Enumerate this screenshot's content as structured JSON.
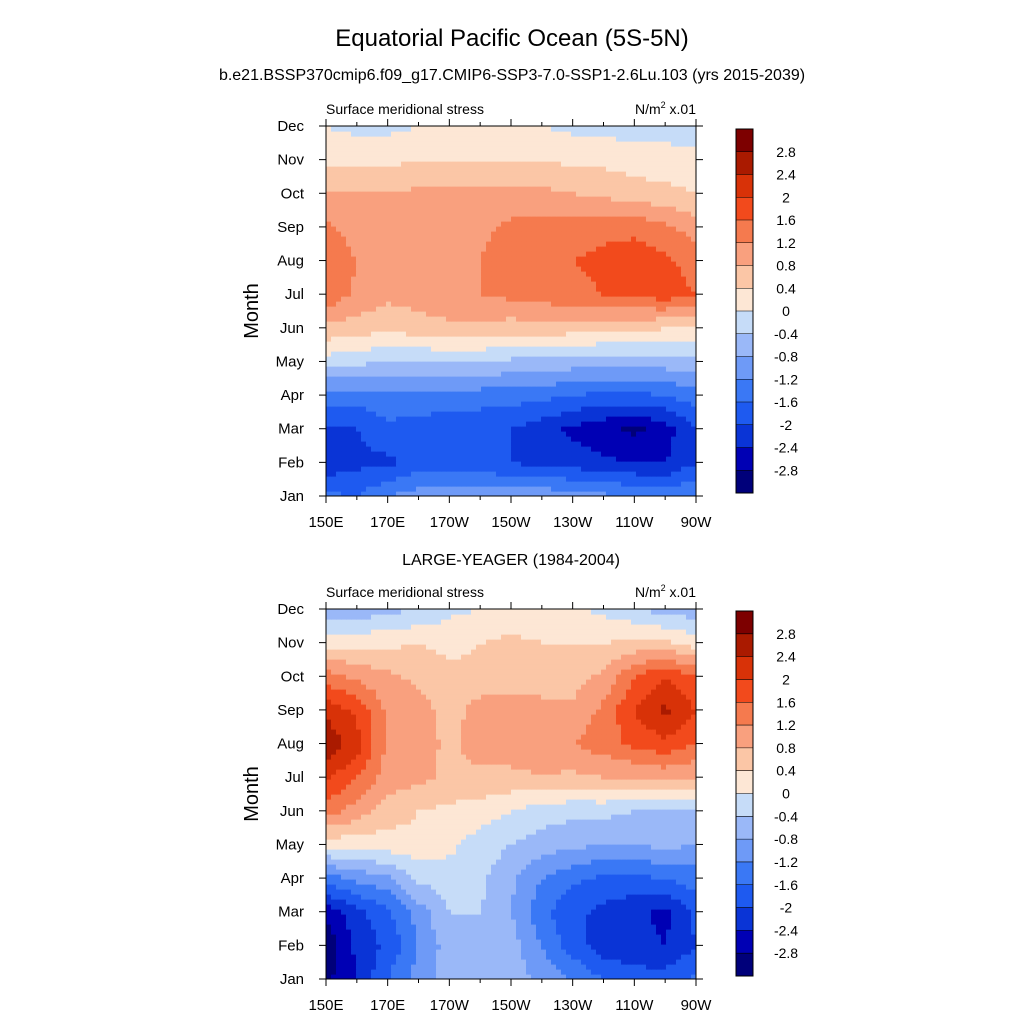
{
  "figure": {
    "title": "Equatorial Pacific Ocean (5S-5N)",
    "subtitle": "b.e21.BSSP370cmip6.f09_g17.CMIP6-SSP3-7.0-SSP1-2.6Lu.103 (yrs 2015-2039)"
  },
  "chart_data": [
    {
      "type": "heatmap",
      "title": "",
      "left_label": "Surface meridional stress",
      "units_base": "N/m",
      "units_exp": "2",
      "units_scale": " x.01",
      "ylabel": "Month",
      "xlabel": "",
      "x_ticks": [
        "150E",
        "170E",
        "170W",
        "150W",
        "130W",
        "110W",
        "90W"
      ],
      "x_range_deg_east": [
        150,
        270
      ],
      "y_ticks": [
        "Jan",
        "Feb",
        "Mar",
        "Apr",
        "May",
        "Jun",
        "Jul",
        "Aug",
        "Sep",
        "Oct",
        "Nov",
        "Dec"
      ],
      "colorbar_labels": [
        "2.8",
        "2.4",
        "2",
        "1.6",
        "1.2",
        "0.8",
        "0.4",
        "0",
        "-0.4",
        "-0.8",
        "-1.2",
        "-1.6",
        "-2",
        "-2.4",
        "-2.8"
      ],
      "longitudes_deg_east": [
        150,
        160,
        170,
        180,
        190,
        200,
        210,
        220,
        230,
        240,
        250,
        260,
        270
      ],
      "values": [
        [
          -1.5,
          -1.6,
          -1.2,
          -1.0,
          -0.9,
          -0.9,
          -0.9,
          -0.9,
          -1.0,
          -1.1,
          -1.2,
          -1.3,
          -1.2
        ],
        [
          -2.3,
          -2.1,
          -2.1,
          -1.8,
          -1.8,
          -1.9,
          -2.0,
          -2.1,
          -2.2,
          -2.3,
          -2.4,
          -2.4,
          -2.0
        ],
        [
          -2.1,
          -2.0,
          -1.7,
          -1.8,
          -1.9,
          -1.9,
          -2.0,
          -2.2,
          -2.5,
          -2.7,
          -2.9,
          -2.6,
          -2.0
        ],
        [
          -1.4,
          -1.4,
          -1.3,
          -1.3,
          -1.3,
          -1.4,
          -1.4,
          -1.5,
          -1.6,
          -1.7,
          -1.7,
          -1.6,
          -1.4
        ],
        [
          -0.2,
          -0.3,
          -0.4,
          -0.4,
          -0.4,
          -0.4,
          -0.5,
          -0.5,
          -0.6,
          -0.6,
          -0.6,
          -0.6,
          -0.5
        ],
        [
          0.7,
          0.6,
          0.5,
          0.6,
          0.7,
          0.7,
          0.6,
          0.6,
          0.6,
          0.5,
          0.5,
          0.4,
          0.3
        ],
        [
          1.5,
          1.1,
          0.9,
          1.0,
          1.1,
          1.2,
          1.3,
          1.4,
          1.5,
          1.6,
          1.7,
          1.8,
          1.6
        ],
        [
          1.6,
          1.2,
          1.0,
          1.1,
          1.1,
          1.2,
          1.4,
          1.5,
          1.6,
          1.7,
          1.8,
          1.7,
          1.4
        ],
        [
          1.3,
          1.0,
          1.0,
          1.1,
          1.1,
          1.1,
          1.3,
          1.4,
          1.4,
          1.5,
          1.5,
          1.3,
          1.0
        ],
        [
          0.8,
          0.8,
          0.8,
          0.9,
          0.9,
          0.9,
          0.9,
          0.9,
          0.8,
          0.7,
          0.6,
          0.5,
          0.4
        ],
        [
          0.3,
          0.3,
          0.3,
          0.4,
          0.4,
          0.4,
          0.4,
          0.4,
          0.3,
          0.3,
          0.2,
          0.2,
          0.2
        ],
        [
          0.0,
          -0.1,
          -0.1,
          0.0,
          0.0,
          0.1,
          0.1,
          0.0,
          -0.1,
          -0.1,
          -0.2,
          -0.2,
          -0.3
        ]
      ]
    },
    {
      "type": "heatmap",
      "title": "LARGE-YEAGER (1984-2004)",
      "left_label": "Surface meridional stress",
      "units_base": "N/m",
      "units_exp": "2",
      "units_scale": " x.01",
      "ylabel": "Month",
      "xlabel": "",
      "x_ticks": [
        "150E",
        "170E",
        "170W",
        "150W",
        "130W",
        "110W",
        "90W"
      ],
      "x_range_deg_east": [
        150,
        270
      ],
      "y_ticks": [
        "Jan",
        "Feb",
        "Mar",
        "Apr",
        "May",
        "Jun",
        "Jul",
        "Aug",
        "Sep",
        "Oct",
        "Nov",
        "Dec"
      ],
      "colorbar_labels": [
        "2.8",
        "2.4",
        "2",
        "1.6",
        "1.2",
        "0.8",
        "0.4",
        "0",
        "-0.4",
        "-0.8",
        "-1.2",
        "-1.6",
        "-2",
        "-2.4",
        "-2.8"
      ],
      "longitudes_deg_east": [
        150,
        160,
        170,
        180,
        190,
        200,
        210,
        220,
        230,
        240,
        250,
        260,
        270
      ],
      "values": [
        [
          -2.9,
          -2.4,
          -1.6,
          -1.0,
          -0.6,
          -0.6,
          -0.6,
          -0.9,
          -1.2,
          -1.6,
          -1.8,
          -1.8,
          -1.5
        ],
        [
          -3.1,
          -2.3,
          -1.9,
          -1.2,
          -0.6,
          -0.5,
          -0.6,
          -1.2,
          -1.8,
          -2.2,
          -2.3,
          -2.4,
          -2.0
        ],
        [
          -2.7,
          -2.1,
          -1.7,
          -1.0,
          -0.4,
          -0.4,
          -0.8,
          -1.5,
          -1.9,
          -2.1,
          -2.3,
          -2.5,
          -1.9
        ],
        [
          -1.4,
          -1.1,
          -0.9,
          -0.3,
          -0.2,
          -0.3,
          -0.7,
          -1.2,
          -1.5,
          -1.7,
          -1.7,
          -1.6,
          -1.4
        ],
        [
          0.1,
          0.2,
          0.2,
          0.3,
          0.1,
          -0.2,
          -0.4,
          -0.6,
          -0.7,
          -0.8,
          -0.8,
          -0.7,
          -0.8
        ],
        [
          1.4,
          1.0,
          0.6,
          0.4,
          0.3,
          0.2,
          0.0,
          -0.2,
          -0.3,
          -0.3,
          -0.4,
          -0.5,
          -0.4
        ],
        [
          2.1,
          1.6,
          1.0,
          0.9,
          0.7,
          0.7,
          0.7,
          0.8,
          0.7,
          0.8,
          0.8,
          0.9,
          0.8
        ],
        [
          2.7,
          2.2,
          1.1,
          1.0,
          0.7,
          1.0,
          1.0,
          1.0,
          1.2,
          1.4,
          1.7,
          1.9,
          1.6
        ],
        [
          2.3,
          1.9,
          1.1,
          1.0,
          0.6,
          1.0,
          1.0,
          1.0,
          0.9,
          1.3,
          2.0,
          2.5,
          2.0
        ],
        [
          1.4,
          1.1,
          0.9,
          0.7,
          0.5,
          0.5,
          0.6,
          0.5,
          0.6,
          0.9,
          1.6,
          2.0,
          1.6
        ],
        [
          0.2,
          0.3,
          0.3,
          0.4,
          0.3,
          0.4,
          0.5,
          0.4,
          0.4,
          0.4,
          0.5,
          0.5,
          0.2
        ],
        [
          -0.7,
          -0.7,
          -0.5,
          -0.4,
          -0.1,
          0.0,
          0.1,
          0.1,
          0.1,
          -0.1,
          -0.3,
          -0.6,
          -0.6
        ]
      ]
    }
  ],
  "colors": {
    "palette": [
      "#00007a",
      "#0000b4",
      "#0a34d6",
      "#1e5af0",
      "#3a78f5",
      "#6e9af7",
      "#9ab8f8",
      "#c6dcf8",
      "#fde7d5",
      "#fbc6a6",
      "#f9a07e",
      "#f57a4e",
      "#f24a1c",
      "#d83208",
      "#aa1a00",
      "#7d0000"
    ]
  }
}
